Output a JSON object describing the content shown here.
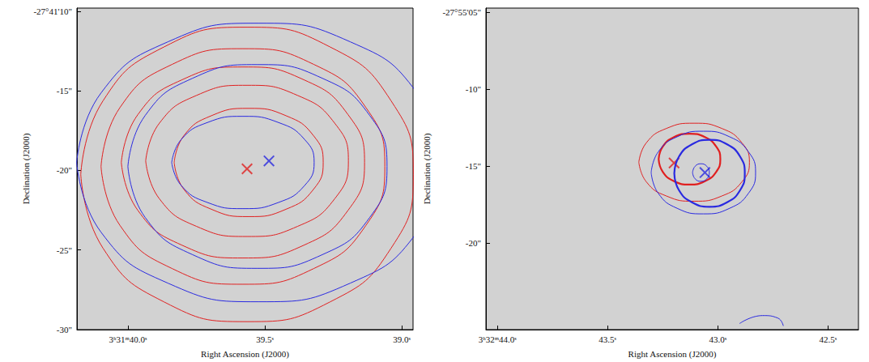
{
  "chart_data": [
    {
      "type": "line",
      "x_label": "Right Ascension (J2000)",
      "y_label": "Declination (J2000)",
      "xlim": [
        40.186,
        38.959
      ],
      "ylim": [
        -30.0,
        -9.8
      ],
      "xticks": [
        {
          "value": 40.0,
          "label": "3ʰ31ᵐ40.0ˢ"
        },
        {
          "value": 39.5,
          "label": "39.5ˢ"
        },
        {
          "value": 39.0,
          "label": "39.0ˢ"
        }
      ],
      "yticks": [
        {
          "value": -10,
          "label": "-27°41'10\""
        },
        {
          "value": -15,
          "label": "-15\""
        },
        {
          "value": -20,
          "label": "-20\""
        },
        {
          "value": -25,
          "label": "-25\""
        },
        {
          "value": -30,
          "label": "-30\""
        }
      ],
      "grid": false,
      "series": [
        {
          "type": "line",
          "color": "#e02020",
          "line_style": "solid",
          "values": [
            [
              39.831,
              -19.5
            ],
            [
              39.795,
              -17.8
            ],
            [
              39.695,
              -16.56
            ],
            [
              39.559,
              -16.1
            ],
            [
              39.423,
              -16.56
            ],
            [
              39.323,
              -17.8
            ],
            [
              39.287,
              -19.5
            ],
            [
              39.323,
              -21.2
            ],
            [
              39.423,
              -22.44
            ],
            [
              39.559,
              -22.9
            ],
            [
              39.695,
              -22.44
            ],
            [
              39.795,
              -21.2
            ],
            [
              39.831,
              -19.5
            ]
          ]
        },
        {
          "type": "line",
          "color": "#e02020",
          "line_style": "solid",
          "values": [
            [
              39.935,
              -19.4
            ],
            [
              39.885,
              -17.03
            ],
            [
              39.75,
              -15.29
            ],
            [
              39.565,
              -14.65
            ],
            [
              39.38,
              -15.29
            ],
            [
              39.245,
              -17.03
            ],
            [
              39.195,
              -19.4
            ],
            [
              39.245,
              -21.78
            ],
            [
              39.38,
              -23.51
            ],
            [
              39.565,
              -24.15
            ],
            [
              39.75,
              -23.51
            ],
            [
              39.885,
              -21.78
            ],
            [
              39.935,
              -19.4
            ]
          ]
        },
        {
          "type": "line",
          "color": "#e02020",
          "line_style": "solid",
          "values": [
            [
              40.024,
              -19.5
            ],
            [
              39.964,
              -16.5
            ],
            [
              39.802,
              -14.3
            ],
            [
              39.58,
              -13.5
            ],
            [
              39.358,
              -14.3
            ],
            [
              39.196,
              -16.5
            ],
            [
              39.136,
              -19.5
            ],
            [
              39.196,
              -22.5
            ],
            [
              39.358,
              -24.7
            ],
            [
              39.58,
              -25.5
            ],
            [
              39.802,
              -24.7
            ],
            [
              39.964,
              -22.5
            ],
            [
              40.024,
              -19.5
            ]
          ]
        },
        {
          "type": "line",
          "color": "#e02020",
          "line_style": "solid",
          "values": [
            [
              40.098,
              -19.75
            ],
            [
              40.029,
              -16.05
            ],
            [
              39.839,
              -13.34
            ],
            [
              39.58,
              -12.35
            ],
            [
              39.321,
              -13.34
            ],
            [
              39.131,
              -16.05
            ],
            [
              39.062,
              -19.75
            ],
            [
              39.131,
              -23.45
            ],
            [
              39.321,
              -26.16
            ],
            [
              39.58,
              -27.15
            ],
            [
              39.839,
              -26.16
            ],
            [
              40.029,
              -23.45
            ],
            [
              40.098,
              -19.75
            ]
          ]
        },
        {
          "type": "line",
          "color": "#e02020",
          "line_style": "solid",
          "values": [
            [
              40.172,
              -20.25
            ],
            [
              40.091,
              -15.63
            ],
            [
              39.868,
              -12.24
            ],
            [
              39.565,
              -11.0
            ],
            [
              39.262,
              -12.24
            ],
            [
              39.039,
              -15.63
            ],
            [
              38.958,
              -20.25
            ],
            [
              39.039,
              -24.88
            ],
            [
              39.262,
              -28.26
            ],
            [
              39.565,
              -29.5
            ],
            [
              39.868,
              -28.26
            ],
            [
              40.091,
              -24.88
            ],
            [
              40.172,
              -20.25
            ]
          ]
        },
        {
          "type": "line",
          "color": "#2a2ae0",
          "line_style": "solid",
          "values": [
            [
              39.84,
              -19.5
            ],
            [
              39.805,
              -18.05
            ],
            [
              39.71,
              -16.99
            ],
            [
              39.58,
              -16.6
            ],
            [
              39.45,
              -16.99
            ],
            [
              39.355,
              -18.05
            ],
            [
              39.32,
              -19.5
            ],
            [
              39.355,
              -20.95
            ],
            [
              39.45,
              -22.01
            ],
            [
              39.58,
              -22.4
            ],
            [
              39.71,
              -22.01
            ],
            [
              39.805,
              -20.95
            ],
            [
              39.84,
              -19.5
            ]
          ]
        },
        {
          "type": "line",
          "color": "#2a2ae0",
          "line_style": "solid",
          "values": [
            [
              40.0,
              -19.75
            ],
            [
              39.937,
              -16.55
            ],
            [
              39.764,
              -14.21
            ],
            [
              39.527,
              -13.35
            ],
            [
              39.29,
              -14.21
            ],
            [
              39.117,
              -16.55
            ],
            [
              39.054,
              -19.75
            ],
            [
              39.117,
              -22.95
            ],
            [
              39.29,
              -25.29
            ],
            [
              39.527,
              -26.15
            ],
            [
              39.764,
              -25.29
            ],
            [
              39.937,
              -22.95
            ],
            [
              40.0,
              -19.75
            ]
          ]
        },
        {
          "type": "line",
          "color": "#2a2ae0",
          "line_style": "solid",
          "values": [
            [
              40.187,
              -19.5
            ],
            [
              40.098,
              -15.13
            ],
            [
              39.854,
              -11.92
            ],
            [
              39.521,
              -10.75
            ],
            [
              39.188,
              -11.92
            ],
            [
              38.944,
              -15.13
            ],
            [
              38.855,
              -19.5
            ],
            [
              38.944,
              -23.88
            ],
            [
              39.188,
              -27.08
            ],
            [
              39.521,
              -28.25
            ],
            [
              39.854,
              -27.08
            ],
            [
              40.098,
              -23.88
            ],
            [
              40.187,
              -19.5
            ]
          ]
        },
        {
          "type": "scatter",
          "color": "#e02020",
          "marker": "x",
          "values": [
            [
              39.565,
              -19.9
            ]
          ]
        },
        {
          "type": "scatter",
          "color": "#2a2ae0",
          "marker": "x",
          "values": [
            [
              39.485,
              -19.4
            ]
          ]
        }
      ]
    },
    {
      "type": "line",
      "x_label": "Right Ascension (J2000)",
      "y_label": "Declination (J2000)",
      "xlim": [
        44.052,
        42.361
      ],
      "ylim": [
        -25.6,
        -4.74
      ],
      "xticks": [
        {
          "value": 44.0,
          "label": "3ʰ32ᵐ44.0ˢ"
        },
        {
          "value": 43.5,
          "label": "43.5ˢ"
        },
        {
          "value": 43.0,
          "label": "43.0ˢ"
        },
        {
          "value": 42.5,
          "label": "42.5ˢ"
        }
      ],
      "yticks": [
        {
          "value": -5,
          "label": "-27°55'05\""
        },
        {
          "value": -10,
          "label": "-10\""
        },
        {
          "value": -15,
          "label": "-15\""
        },
        {
          "value": -20,
          "label": "-20\""
        }
      ],
      "grid": false,
      "series": [
        {
          "type": "line",
          "color": "#e02020",
          "line_style": "solid",
          "values": [
            [
              43.358,
              -14.74
            ],
            [
              43.324,
              -13.48
            ],
            [
              43.233,
              -12.55
            ],
            [
              43.107,
              -12.21
            ],
            [
              42.981,
              -12.55
            ],
            [
              42.89,
              -13.48
            ],
            [
              42.856,
              -14.74
            ],
            [
              42.89,
              -16.01
            ],
            [
              42.981,
              -16.93
            ],
            [
              43.107,
              -17.27
            ],
            [
              43.233,
              -16.93
            ],
            [
              43.324,
              -16.01
            ],
            [
              43.358,
              -14.74
            ]
          ]
        },
        {
          "type": "line",
          "color": "#e02020",
          "line_style": "thick",
          "values": [
            [
              43.268,
              -14.54
            ],
            [
              43.249,
              -13.72
            ],
            [
              43.198,
              -13.11
            ],
            [
              43.128,
              -12.89
            ],
            [
              43.058,
              -13.11
            ],
            [
              43.007,
              -13.72
            ],
            [
              42.988,
              -14.54
            ],
            [
              43.007,
              -15.37
            ],
            [
              43.058,
              -15.97
            ],
            [
              43.128,
              -16.19
            ],
            [
              43.198,
              -15.97
            ],
            [
              43.249,
              -15.37
            ],
            [
              43.268,
              -14.54
            ]
          ]
        },
        {
          "type": "line",
          "color": "#2a2ae0",
          "line_style": "solid",
          "values": [
            [
              43.302,
              -15.41
            ],
            [
              43.27,
              -14.07
            ],
            [
              43.184,
              -13.09
            ],
            [
              43.065,
              -12.73
            ],
            [
              42.946,
              -13.09
            ],
            [
              42.86,
              -14.07
            ],
            [
              42.828,
              -15.41
            ],
            [
              42.86,
              -16.75
            ],
            [
              42.946,
              -17.73
            ],
            [
              43.065,
              -18.09
            ],
            [
              43.184,
              -17.73
            ],
            [
              43.27,
              -16.75
            ],
            [
              43.302,
              -15.41
            ]
          ]
        },
        {
          "type": "line",
          "color": "#2a2ae0",
          "line_style": "thick",
          "values": [
            [
              43.197,
              -15.46
            ],
            [
              43.176,
              -14.38
            ],
            [
              43.117,
              -13.58
            ],
            [
              43.037,
              -13.29
            ],
            [
              42.957,
              -13.58
            ],
            [
              42.898,
              -14.38
            ],
            [
              42.877,
              -15.46
            ],
            [
              42.898,
              -16.55
            ],
            [
              42.957,
              -17.34
            ],
            [
              43.037,
              -17.63
            ],
            [
              43.117,
              -17.34
            ],
            [
              43.176,
              -16.55
            ],
            [
              43.197,
              -15.46
            ]
          ]
        },
        {
          "type": "line",
          "color": "#2a2ae0",
          "line_style": "solid",
          "values": [
            [
              43.114,
              -15.41
            ],
            [
              43.103,
              -15.01
            ],
            [
              43.076,
              -14.84
            ],
            [
              43.049,
              -15.01
            ],
            [
              43.038,
              -15.41
            ],
            [
              43.049,
              -15.81
            ],
            [
              43.076,
              -15.98
            ],
            [
              43.103,
              -15.81
            ],
            [
              43.114,
              -15.41
            ]
          ]
        },
        {
          "type": "line",
          "color": "#2a2ae0",
          "line_style": "solid",
          "values": [
            [
              42.901,
              -25.21
            ],
            [
              42.797,
              -24.69
            ],
            [
              42.727,
              -24.85
            ],
            [
              42.702,
              -25.36
            ]
          ]
        },
        {
          "type": "scatter",
          "color": "#e02020",
          "marker": "x",
          "values": [
            [
              43.198,
              -14.79
            ]
          ]
        },
        {
          "type": "scatter",
          "color": "#2a2ae0",
          "marker": "x",
          "values": [
            [
              43.058,
              -15.41
            ]
          ]
        }
      ]
    }
  ]
}
